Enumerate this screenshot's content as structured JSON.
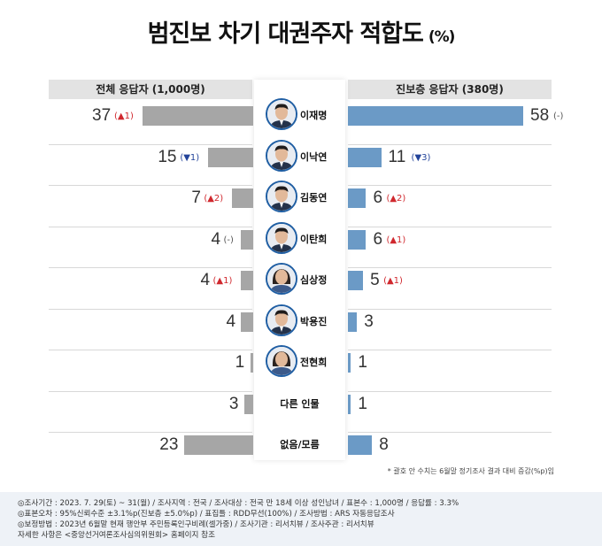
{
  "title": "범진보 차기 대권주자 적합도",
  "title_unit": "(%)",
  "headers": {
    "left": "전체 응답자 (1,000명)",
    "right": "진보층 응답자 (380명)"
  },
  "colors": {
    "left_bar": "#a6a6a6",
    "right_bar": "#6b9ac6",
    "up": "#d0282e",
    "down": "#23449a"
  },
  "chart_data": {
    "type": "bar",
    "categories": [
      "이재명",
      "이낙연",
      "김동연",
      "이탄희",
      "심상정",
      "박용진",
      "전현희",
      "다른 인물",
      "없음/모름"
    ],
    "series": [
      {
        "name": "전체 응답자 (1,000명)",
        "values": [
          37,
          15,
          7,
          4,
          4,
          4,
          1,
          3,
          23
        ],
        "changes": [
          "▲1",
          "▼1",
          "▲2",
          "-",
          "▲1",
          "",
          "",
          "",
          ""
        ]
      },
      {
        "name": "진보층 응답자 (380명)",
        "values": [
          58,
          11,
          6,
          6,
          5,
          3,
          1,
          1,
          8
        ],
        "changes": [
          "-",
          "▼3",
          "▲2",
          "▲1",
          "▲1",
          "",
          "",
          "",
          ""
        ]
      }
    ],
    "photos": [
      true,
      true,
      true,
      true,
      true,
      true,
      true,
      false,
      false
    ],
    "note": "* 괄호 안 수치는 6월말 정기조사 결과 대비 증감(%p)임"
  },
  "footer": [
    "◎조사기간 : 2023. 7. 29(토) ~ 31(월) / 조사지역 : 전국 / 조사대상 : 전국 만 18세 이상 성인남녀 / 표본수 : 1,000명 / 응답률 : 3.3%",
    "◎표본오차 : 95%신뢰수준 ±3.1%p(진보층 ±5.0%p) / 표집틀 : RDD무선(100%) / 조사방법 : ARS 자동응답조사",
    "◎보정방법 : 2023년 6월말 현재 행안부 주민등록인구비례(셀가중) / 조사기관 : 리서치뷰 / 조사주관 : 리서치뷰",
    "자세한 사항은 <중앙선거여론조사심의위원회> 홈페이지 참조"
  ]
}
